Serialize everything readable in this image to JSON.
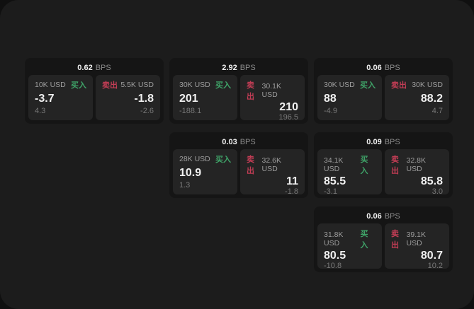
{
  "colors": {
    "page_bg": "#101010",
    "panel_bg": "#1c1c1c",
    "card_bg": "#151515",
    "tile_bg": "#242424",
    "text_primary": "#f0f0f0",
    "text_label": "#9d9d9d",
    "text_muted": "#8c8c8c",
    "text_dim": "#787878",
    "buy_green": "#3fa368",
    "sell_red": "#c23d55"
  },
  "labels": {
    "bps_unit": "BPS",
    "buy": "买入",
    "sell": "卖出"
  },
  "cards": [
    {
      "bps": "0.62",
      "col": 1,
      "row": 1,
      "buy": {
        "notional": "10K USD",
        "price": "-3.7",
        "delta": "4.3"
      },
      "sell": {
        "notional": "5.5K USD",
        "price": "-1.8",
        "delta": "-2.6"
      }
    },
    {
      "bps": "2.92",
      "col": 2,
      "row": 1,
      "buy": {
        "notional": "30K USD",
        "price": "201",
        "delta": "-188.1"
      },
      "sell": {
        "notional": "30.1K USD",
        "price": "210",
        "delta": "196.5"
      }
    },
    {
      "bps": "0.06",
      "col": 3,
      "row": 1,
      "buy": {
        "notional": "30K USD",
        "price": "88",
        "delta": "-4.9"
      },
      "sell": {
        "notional": "30K USD",
        "price": "88.2",
        "delta": "4.7"
      }
    },
    {
      "bps": "0.03",
      "col": 2,
      "row": 2,
      "buy": {
        "notional": "28K USD",
        "price": "10.9",
        "delta": "1.3"
      },
      "sell": {
        "notional": "32.6K USD",
        "price": "11",
        "delta": "-1.8"
      }
    },
    {
      "bps": "0.09",
      "col": 3,
      "row": 2,
      "buy": {
        "notional": "34.1K USD",
        "price": "85.5",
        "delta": "-3.1"
      },
      "sell": {
        "notional": "32.8K USD",
        "price": "85.8",
        "delta": "3.0"
      }
    },
    {
      "bps": "0.06",
      "col": 3,
      "row": 3,
      "buy": {
        "notional": "31.8K USD",
        "price": "80.5",
        "delta": "-10.8"
      },
      "sell": {
        "notional": "39.1K USD",
        "price": "80.7",
        "delta": "10.2"
      }
    }
  ]
}
